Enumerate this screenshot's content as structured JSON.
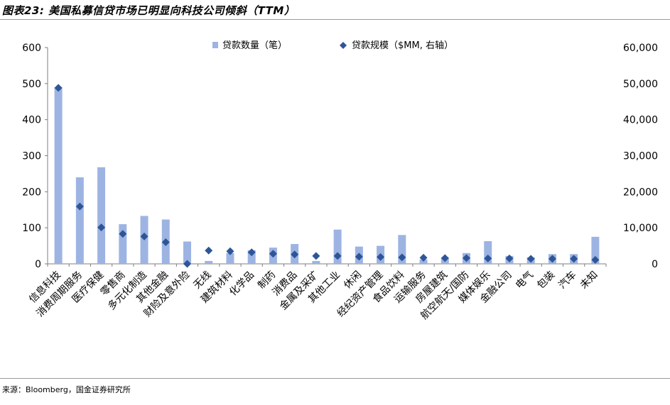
{
  "title": "图表23: 美国私募信贷市场已明显向科技公司倾斜（TTM）",
  "source": "来源：Bloomberg，国金证券研究所",
  "colors": {
    "bar": "#9db4e3",
    "marker": "#2e5597",
    "axis": "#7f7f7f",
    "rule": "#9b9b9b"
  },
  "chart_data": {
    "type": "bar",
    "categories": [
      "信息科技",
      "消费周期服务",
      "医疗保健",
      "零售商",
      "多元化制造",
      "其他金融",
      "财险及意外险",
      "无线",
      "建筑材料",
      "化学品",
      "制药",
      "消费品",
      "金属及采矿",
      "其他工业",
      "休闲",
      "经纪资产管理",
      "食品饮料",
      "运输服务",
      "房屋建筑",
      "航空航天/国防",
      "媒体娱乐",
      "金融公司",
      "电气",
      "包装",
      "汽车",
      "未知"
    ],
    "series": [
      {
        "name": "贷款数量（笔）",
        "type": "bar",
        "axis": "left",
        "values": [
          490,
          240,
          268,
          110,
          133,
          123,
          62,
          8,
          30,
          38,
          45,
          55,
          8,
          95,
          48,
          50,
          80,
          12,
          18,
          30,
          63,
          22,
          18,
          27,
          27,
          75
        ]
      },
      {
        "name": "贷款规模（$MM, 右轴）",
        "type": "scatter",
        "marker": "diamond",
        "axis": "right",
        "values": [
          48800,
          15900,
          10100,
          8300,
          7600,
          6000,
          0,
          3700,
          3500,
          3200,
          2800,
          2600,
          2200,
          2200,
          2000,
          1900,
          1800,
          1700,
          1600,
          1600,
          1500,
          1500,
          1400,
          1400,
          1400,
          1100
        ]
      }
    ],
    "y_left": {
      "lim": [
        0,
        600
      ],
      "ticks": [
        "0",
        "100",
        "200",
        "300",
        "400",
        "500",
        "600"
      ]
    },
    "y_right": {
      "lim": [
        0,
        60000
      ],
      "ticks": [
        "0",
        "10,000",
        "20,000",
        "30,000",
        "40,000",
        "50,000",
        "60,000"
      ]
    },
    "legend": "top-center",
    "grid": false
  }
}
